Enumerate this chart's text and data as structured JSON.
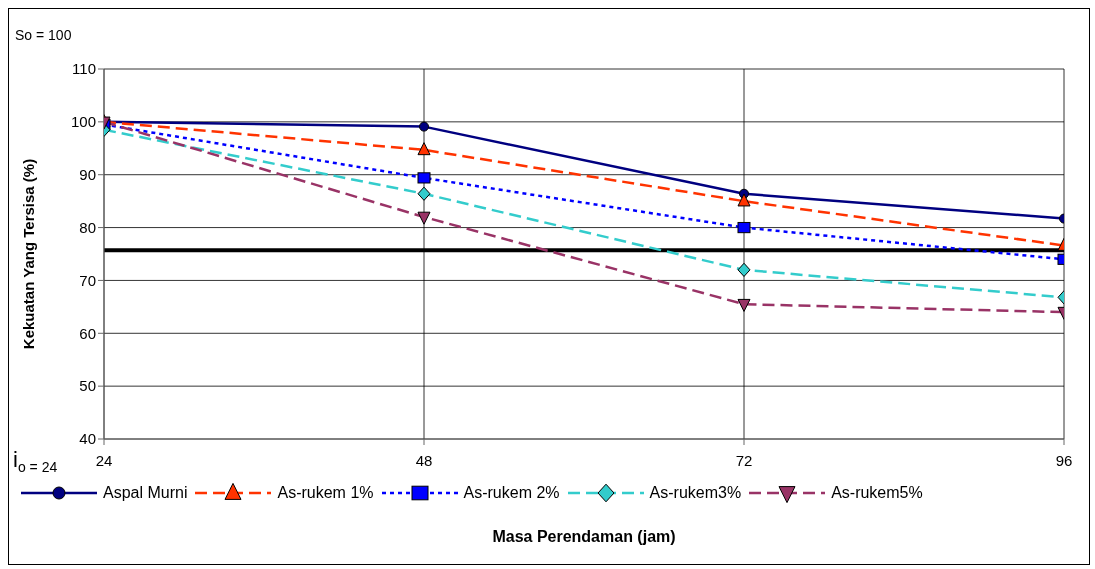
{
  "chart_data": {
    "type": "line",
    "xlabel": "Masa Perendaman (jam)",
    "ylabel": "Kekuatan Yang Tersisa (%)",
    "x": [
      24,
      48,
      72,
      96
    ],
    "series": [
      {
        "name": "Aspal Murni",
        "color": "#000080",
        "marker": "circle",
        "line_style": "solid",
        "values": [
          100,
          99.1,
          86.4,
          81.7
        ]
      },
      {
        "name": "As-rukem 1%",
        "color": "#ff3300",
        "marker": "triangle",
        "line_style": "dashed",
        "values": [
          100,
          94.7,
          85,
          76.6
        ]
      },
      {
        "name": "As-rukem 2%",
        "color": "#0000ff",
        "marker": "square",
        "line_style": "dotted",
        "values": [
          99.5,
          89.4,
          80,
          74
        ]
      },
      {
        "name": "As-rukem3%",
        "color": "#33cccc",
        "marker": "diamond",
        "line_style": "dashed",
        "values": [
          98.5,
          86.4,
          72,
          66.8
        ]
      },
      {
        "name": "As-rukem5%",
        "color": "#993366",
        "marker": "triangle-down",
        "line_style": "dashed",
        "values": [
          100,
          82,
          65.5,
          64
        ]
      }
    ],
    "xlim": [
      24,
      96
    ],
    "xticks": [
      24,
      48,
      72,
      96
    ],
    "ylim": [
      40,
      110
    ],
    "yticks": [
      40,
      50,
      60,
      70,
      80,
      90,
      100,
      110
    ],
    "ref_lines": [
      {
        "axis": "y",
        "value": 75.7,
        "color": "#000000"
      }
    ],
    "annotations": [
      "So = 100",
      "i$_{o = 24}$"
    ],
    "grid": true,
    "legend": "bottom"
  }
}
